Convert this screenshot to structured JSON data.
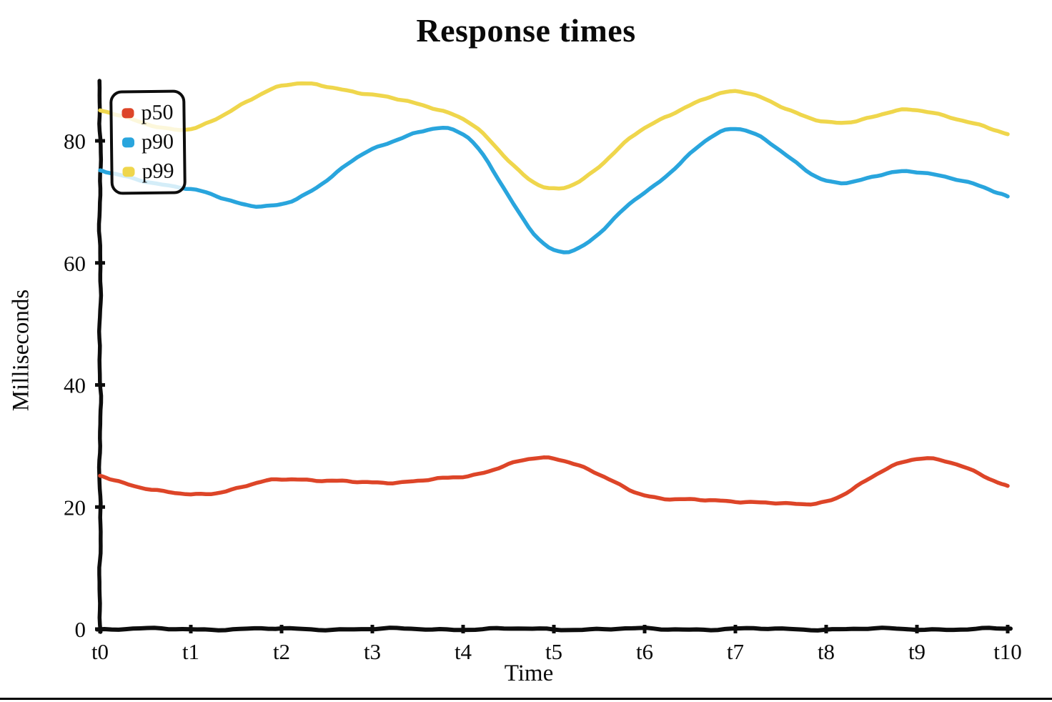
{
  "chart_data": {
    "type": "line",
    "title": "Response times",
    "xlabel": "Time",
    "ylabel": "Milliseconds",
    "x": [
      "t0",
      "t1",
      "t2",
      "t3",
      "t4",
      "t5",
      "t6",
      "t7",
      "t8",
      "t9",
      "t10"
    ],
    "yticks": [
      0,
      20,
      40,
      60,
      80
    ],
    "ylim": [
      0,
      92
    ],
    "grid": false,
    "legend_position": "upper-left",
    "style": "hand-drawn-xkcd",
    "axis_color": "#0d0d0d",
    "series": [
      {
        "name": "p50",
        "color": "#dd4528",
        "values": [
          25,
          22,
          24.5,
          24,
          25,
          28,
          22,
          21,
          21,
          28,
          23.5
        ]
      },
      {
        "name": "p90",
        "color": "#29a5dd",
        "values": [
          75,
          72,
          69.5,
          78.5,
          81,
          62,
          71.5,
          82,
          73.5,
          75,
          71
        ]
      },
      {
        "name": "p99",
        "color": "#efd64c",
        "values": [
          85,
          82,
          89,
          87.5,
          83.5,
          72,
          82,
          88,
          83,
          85,
          81
        ]
      }
    ]
  }
}
